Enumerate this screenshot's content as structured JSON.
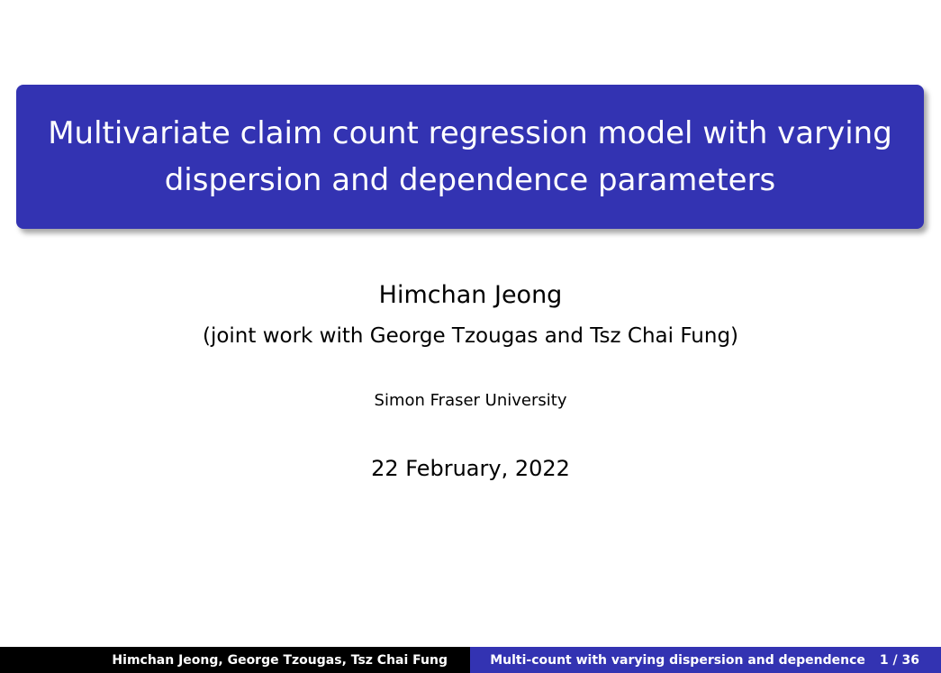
{
  "slide": {
    "title": "Multivariate claim count regression model with varying dispersion and dependence parameters",
    "author": "Himchan Jeong",
    "coauthors": "(joint work with George Tzougas and Tsz Chai Fung)",
    "institution": "Simon Fraser University",
    "date": "22 February, 2022"
  },
  "footer": {
    "authors": "Himchan Jeong, George Tzougas, Tsz Chai Fung",
    "short_title": "Multi-count with varying dispersion and dependence",
    "page": "1 / 36"
  },
  "colors": {
    "title_box": "#3333b2",
    "footer_left": "#000000",
    "footer_right": "#3333b2"
  }
}
